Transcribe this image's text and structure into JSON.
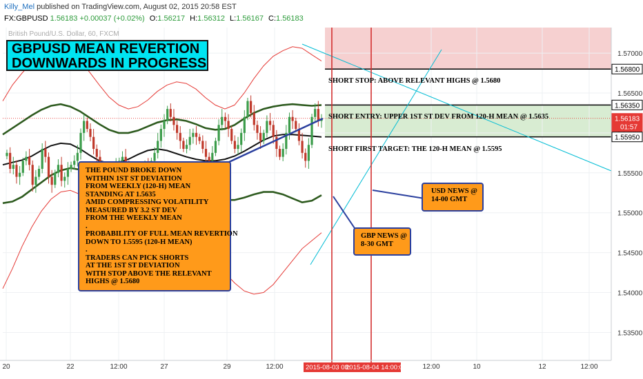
{
  "header": {
    "author": "Killy_Mel",
    "published_text": "published on TradingView.com, August 02, 2015 20:58 EST",
    "symbol": "FX:GBPUSD",
    "last": "1.56183",
    "change": "+0.00037 (+0.02%)",
    "open_label": "O:",
    "open": "1.56217",
    "high_label": "H:",
    "high": "1.56312",
    "low_label": "L:",
    "low": "1.56167",
    "close_label": "C:",
    "close": "1.56183"
  },
  "faint_title": "British Pound/U.S. Dollar, 60, FXCM",
  "title_box": {
    "line1": "GBPUSD MEAN REVERTION",
    "line2": "DOWNWARDS IN PROGRESS"
  },
  "main_note": {
    "lines": [
      "THE POUND BROKE DOWN",
      "WITHIN 1ST ST DEVIATION",
      "FROM WEEKLY (120-H) MEAN",
      "STANDING AT 1.5635",
      "AMID COMPRESSING VOLATILITY",
      "MEASURED BY 3.2 ST DEV",
      "FROM THE WEEKLY MEAN",
      ".",
      "PROBABILITY OF FULL MEAN REVERTION",
      "DOWN TO 1.5595 (120-H MEAN)",
      ".",
      "TRADERS CAN PICK SHORTS",
      "AT THE 1ST ST DEVIATION",
      "WITH STOP ABOVE THE RELEVANT",
      "HIGHS @ 1.5680"
    ]
  },
  "usd_note": {
    "lines": [
      "USD NEWS @",
      "14-00 GMT"
    ]
  },
  "gbp_note": {
    "lines": [
      "GBP NEWS @",
      "8-30 GMT"
    ]
  },
  "levels": {
    "stop": "SHORT STOP: ABOVE RELEVANT HIGHS @ 1.5680",
    "entry": "SHORT ENTRY: UPPER 1ST ST DEV FROM 120-H MEAN @ 1.5635",
    "target": "SHORT FIRST TARGET: THE 120-H MEAN @ 1.5595"
  },
  "colors": {
    "up_candle": "#3b9c4a",
    "down_candle": "#c0392b",
    "stop_zone": "#f6d0d0",
    "entry_zone": "#d8ecd2",
    "mean": "#111111",
    "std1": "#2d5a1e",
    "std_outer": "#e53935",
    "trendline": "#00bcd4",
    "news_line": "#d32f2f",
    "note_bg": "#ff9a1a",
    "title_bg": "#00e5f2"
  },
  "chart_data": {
    "type": "candlestick",
    "title": "British Pound/U.S. Dollar, 60, FXCM",
    "x_ticks": [
      "20",
      "22",
      "12:00",
      "27",
      "29",
      "12:00",
      "12:00",
      "10",
      "12",
      "12:00"
    ],
    "x_highlight": [
      "2015-08-03 08:",
      "2015-08-04 14:00:00"
    ],
    "y_ticks": [
      1.57,
      1.565,
      1.56,
      1.555,
      1.55,
      1.545,
      1.54,
      1.535
    ],
    "ylim": [
      1.5315,
      1.5732
    ],
    "price_labels": [
      {
        "label": "1.56800",
        "value": 1.568,
        "style": "box"
      },
      {
        "label": "1.56350",
        "value": 1.5635,
        "style": "box"
      },
      {
        "label": "1.56183",
        "value": 1.56183,
        "style": "red"
      },
      {
        "label": "01:57",
        "value": 1.5608,
        "style": "red"
      },
      {
        "label": "1.55950",
        "value": 1.5595,
        "style": "box"
      }
    ],
    "levels": [
      {
        "name": "SHORT STOP",
        "value": 1.568
      },
      {
        "name": "SHORT ENTRY",
        "value": 1.5635
      },
      {
        "name": "SHORT FIRST TARGET",
        "value": 1.5595
      }
    ],
    "zones": [
      {
        "name": "stop-zone",
        "from": 1.568,
        "to": 1.5732
      },
      {
        "name": "entry-zone",
        "from": 1.5595,
        "to": 1.5635
      }
    ],
    "candle_closes": [
      1.5575,
      1.5555,
      1.556,
      1.5545,
      1.555,
      1.5565,
      1.557,
      1.556,
      1.5535,
      1.5545,
      1.5555,
      1.558,
      1.557,
      1.5545,
      1.5535,
      1.555,
      1.556,
      1.554,
      1.5545,
      1.5555,
      1.556,
      1.5565,
      1.5575,
      1.56,
      1.5615,
      1.5605,
      1.5595,
      1.558,
      1.557,
      1.556,
      1.5555,
      1.555,
      1.5545,
      1.555,
      1.556,
      1.5565,
      1.557,
      1.556,
      1.5555,
      1.555,
      1.5545,
      1.554,
      1.555,
      1.556,
      1.5555,
      1.5565,
      1.5575,
      1.559,
      1.5605,
      1.5615,
      1.563,
      1.562,
      1.561,
      1.56,
      1.559,
      1.558,
      1.5585,
      1.5595,
      1.56,
      1.5595,
      1.559,
      1.558,
      1.557,
      1.5565,
      1.5575,
      1.559,
      1.561,
      1.562,
      1.5615,
      1.5605,
      1.559,
      1.558,
      1.5585,
      1.56,
      1.562,
      1.564,
      1.5625,
      1.561,
      1.56,
      1.559,
      1.56,
      1.5615,
      1.561,
      1.5595,
      1.558,
      1.557,
      1.558,
      1.56,
      1.562,
      1.5615,
      1.5605,
      1.559,
      1.5575,
      1.5565,
      1.5585,
      1.562,
      1.563,
      1.5615,
      1.5618
    ],
    "mean_120h": [
      1.556,
      1.5563,
      1.5566,
      1.5571,
      1.5578,
      1.5584,
      1.5587,
      1.5586,
      1.558,
      1.5572,
      1.5565,
      1.5562,
      1.5563,
      1.5567,
      1.5573,
      1.5578,
      1.558,
      1.5578,
      1.5574,
      1.557,
      1.5567,
      1.5565,
      1.5565,
      1.5567,
      1.5571,
      1.5577,
      1.5584,
      1.5591,
      1.5596,
      1.5598,
      1.5598,
      1.5597,
      1.5596,
      1.5595
    ],
    "upper_1sd": [
      1.5598,
      1.5606,
      1.5614,
      1.5622,
      1.5629,
      1.5634,
      1.5636,
      1.5633,
      1.5627,
      1.5619,
      1.5611,
      1.5604,
      1.56,
      1.56,
      1.5603,
      1.5608,
      1.5613,
      1.5616,
      1.5617,
      1.5615,
      1.5611,
      1.5606,
      1.5604,
      1.5605,
      1.561,
      1.5618,
      1.5625,
      1.563,
      1.5633,
      1.5635,
      1.5636,
      1.5635,
      1.5634,
      1.5635
    ],
    "lower_1sd": [
      1.5512,
      1.5514,
      1.552,
      1.5529,
      1.5538,
      1.5547,
      1.5553,
      1.5556,
      1.5554,
      1.5548,
      1.554,
      1.5532,
      1.5527,
      1.5525,
      1.5527,
      1.5532,
      1.5537,
      1.554,
      1.554,
      1.5536,
      1.553,
      1.5524,
      1.5519,
      1.5516,
      1.5516,
      1.5519,
      1.5523,
      1.5526,
      1.5526,
      1.5523,
      1.5518,
      1.5513,
      1.5515,
      1.5522
    ],
    "upper_outer": [
      1.564,
      1.566,
      1.5675,
      1.5688,
      1.5698,
      1.5704,
      1.5706,
      1.5701,
      1.569,
      1.5676,
      1.566,
      1.5645,
      1.5635,
      1.563,
      1.5633,
      1.5641,
      1.5652,
      1.566,
      1.5664,
      1.5662,
      1.5655,
      1.5644,
      1.5635,
      1.563,
      1.5635,
      1.565,
      1.5668,
      1.5684,
      1.5696,
      1.5703,
      1.5708,
      1.5706,
      1.5698,
      1.569
    ],
    "lower_outer": [
      1.5405,
      1.543,
      1.5458,
      1.5482,
      1.5502,
      1.5517,
      1.5526,
      1.5528,
      1.5523,
      1.5512,
      1.5496,
      1.5476,
      1.5458,
      1.5445,
      1.544,
      1.5442,
      1.545,
      1.546,
      1.5468,
      1.547,
      1.5465,
      1.5454,
      1.544,
      1.5425,
      1.5412,
      1.5402,
      1.5398,
      1.54,
      1.541,
      1.5425,
      1.544,
      1.5455,
      1.5465,
      1.5475
    ]
  }
}
